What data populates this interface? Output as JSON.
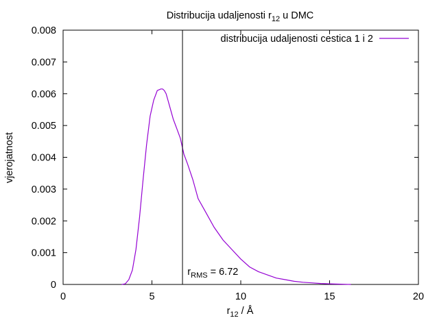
{
  "chart_data": {
    "type": "line",
    "title": {
      "main": "Distribucija udaljenosti r",
      "sub": "12",
      "tail": " u DMC"
    },
    "xlabel": {
      "main": "r",
      "sub": "12",
      "tail": " / Å"
    },
    "ylabel": "vjerojatnost",
    "xlim": [
      0,
      20
    ],
    "ylim": [
      0,
      0.008
    ],
    "xticks": [
      0,
      5,
      10,
      15,
      20
    ],
    "yticks": [
      0,
      0.001,
      0.002,
      0.003,
      0.004,
      0.005,
      0.006,
      0.007,
      0.008
    ],
    "xtick_labels": [
      "0",
      "5",
      "10",
      "15",
      "20"
    ],
    "ytick_labels": [
      "0",
      "0.001",
      "0.002",
      "0.003",
      "0.004",
      "0.005",
      "0.006",
      "0.007",
      "0.008"
    ],
    "grid": false,
    "legend_position": "top-right",
    "series": [
      {
        "name": "distribucija udaljenosti cestica 1 i 2",
        "color": "#9400d3",
        "x": [
          3.3,
          3.5,
          3.7,
          3.9,
          4.1,
          4.3,
          4.5,
          4.7,
          4.9,
          5.1,
          5.3,
          5.5,
          5.6,
          5.7,
          5.8,
          5.9,
          6.0,
          6.2,
          6.4,
          6.6,
          6.8,
          7.0,
          7.3,
          7.6,
          8.0,
          8.5,
          9.0,
          9.5,
          10.0,
          10.5,
          11.0,
          11.5,
          12.0,
          12.5,
          13.0,
          13.5,
          14.0,
          14.5,
          15.0,
          15.5,
          16.2
        ],
        "y": [
          0.0,
          2e-05,
          0.00015,
          0.00045,
          0.0011,
          0.0021,
          0.0033,
          0.0044,
          0.0053,
          0.0058,
          0.0061,
          0.00615,
          0.00615,
          0.0061,
          0.006,
          0.0058,
          0.0056,
          0.0052,
          0.0049,
          0.0046,
          0.0041,
          0.0038,
          0.0033,
          0.0027,
          0.0023,
          0.0018,
          0.0014,
          0.0011,
          0.0008,
          0.00055,
          0.0004,
          0.0003,
          0.0002,
          0.00015,
          0.0001,
          7e-05,
          5e-05,
          3e-05,
          2e-05,
          1e-05,
          0.0
        ]
      }
    ],
    "annotations": [
      {
        "type": "vline",
        "x": 6.72,
        "color": "#000000"
      },
      {
        "type": "text",
        "main": "r",
        "sub": "RMS",
        "tail": " = 6.72",
        "x": 7.0,
        "y": 0.0003
      }
    ]
  }
}
